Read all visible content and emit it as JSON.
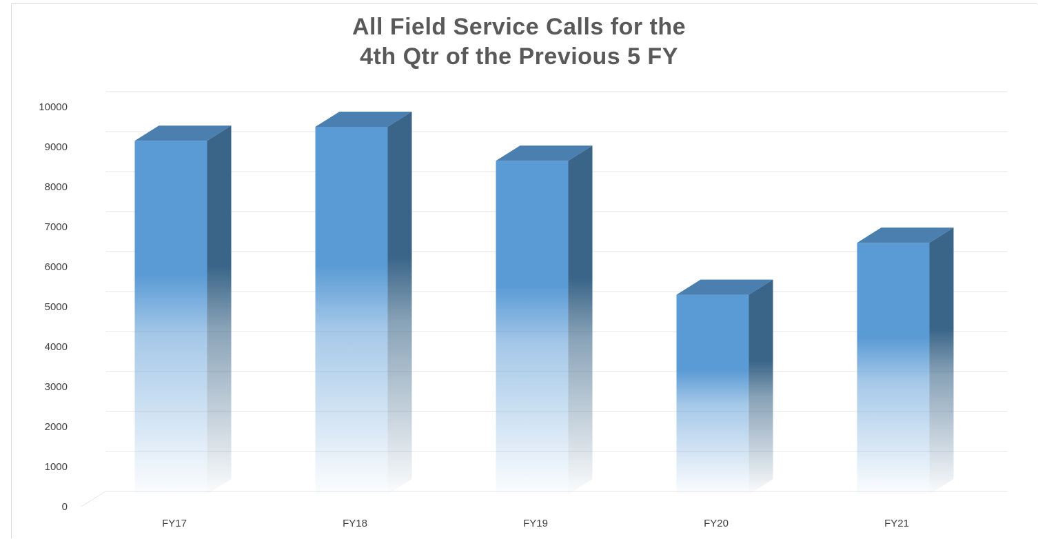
{
  "chart_data": {
    "type": "bar",
    "style": "3d-column",
    "title": [
      "All Field Service Calls for the",
      "4th Qtr of the Previous 5 FY"
    ],
    "xlabel": "",
    "ylabel": "",
    "categories": [
      "FY17",
      "FY18",
      "FY19",
      "FY20",
      "FY21"
    ],
    "series": [
      {
        "values": [
          9150,
          9500,
          8650,
          5300,
          6600
        ]
      }
    ],
    "ylim": [
      0,
      10000
    ],
    "yticks": [
      "0",
      "1000",
      "2000",
      "3000",
      "4000",
      "5000",
      "6000",
      "7000",
      "8000",
      "9000",
      "10000"
    ],
    "grid": true,
    "legend": "none",
    "colors": {
      "front": "#5b9bd5",
      "side": "#3a6588",
      "top": "#4a7fb0",
      "gridline": "#e6e6e6",
      "title": "#595959"
    }
  }
}
